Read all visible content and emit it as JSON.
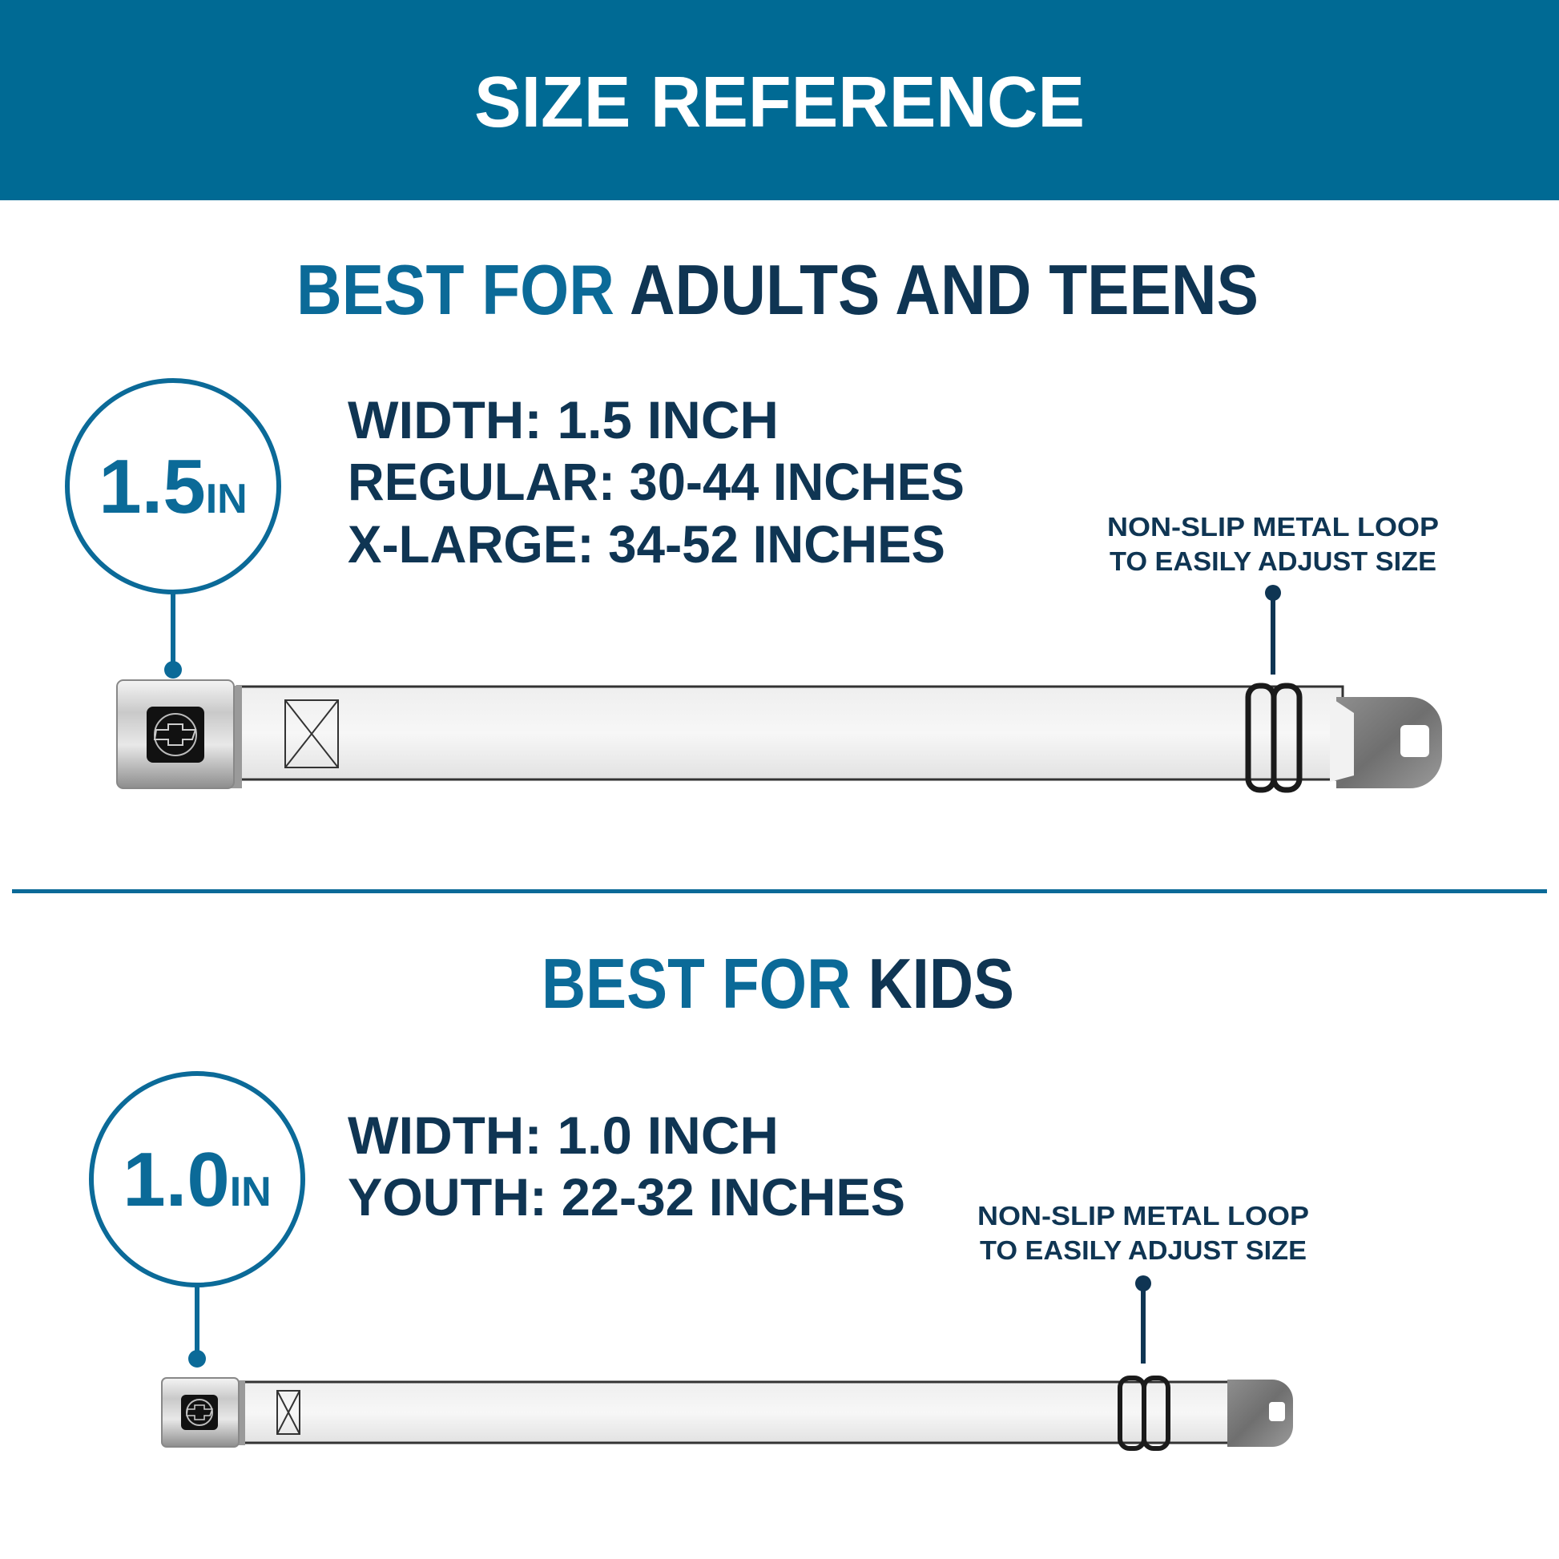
{
  "header": {
    "title": "SIZE REFERENCE"
  },
  "colors": {
    "header_bg": "#006a94",
    "accent": "#0b6a98",
    "dark": "#0f3553"
  },
  "sections": [
    {
      "heading_accent": "BEST FOR",
      "heading_main": "ADULTS AND TEENS",
      "badge_value": "1.5",
      "badge_unit": "IN",
      "specs": [
        "WIDTH: 1.5 INCH",
        "REGULAR: 30-44 INCHES",
        "X-LARGE: 34-52 INCHES"
      ],
      "note": [
        "NON-SLIP METAL LOOP",
        "TO EASILY ADJUST SIZE"
      ]
    },
    {
      "heading_accent": "BEST FOR",
      "heading_main": "KIDS",
      "badge_value": "1.0",
      "badge_unit": "IN",
      "specs": [
        "WIDTH: 1.0 INCH",
        "YOUTH: 22-32 INCHES"
      ],
      "note": [
        "NON-SLIP METAL LOOP",
        "TO EASILY ADJUST SIZE"
      ]
    }
  ]
}
